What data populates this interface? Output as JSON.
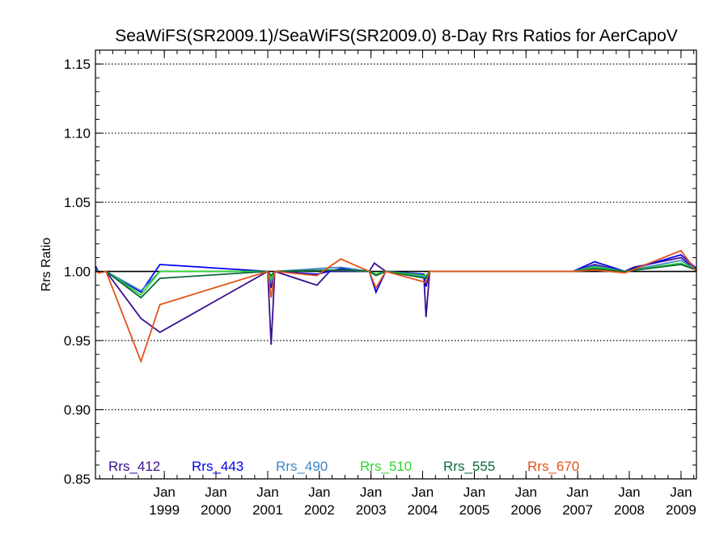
{
  "chart_data": {
    "type": "line",
    "title": "SeaWiFS(SR2009.1)/SeaWiFS(SR2009.0) 8-Day Rrs Ratios for AerCapoV",
    "xlabel": "",
    "ylabel": "Rrs Ratio",
    "xlim": [
      "1997-09-01",
      "2009-04-20"
    ],
    "ylim": [
      0.85,
      1.16
    ],
    "yticks": [
      "0.85",
      "0.90",
      "0.95",
      "1.00",
      "1.05",
      "1.10",
      "1.15"
    ],
    "xticks": [
      {
        "date": "1999-01-01",
        "line1": "Jan",
        "line2": "1999"
      },
      {
        "date": "2000-01-01",
        "line1": "Jan",
        "line2": "2000"
      },
      {
        "date": "2001-01-01",
        "line1": "Jan",
        "line2": "2001"
      },
      {
        "date": "2002-01-01",
        "line1": "Jan",
        "line2": "2002"
      },
      {
        "date": "2003-01-01",
        "line1": "Jan",
        "line2": "2003"
      },
      {
        "date": "2004-01-01",
        "line1": "Jan",
        "line2": "2004"
      },
      {
        "date": "2005-01-01",
        "line1": "Jan",
        "line2": "2005"
      },
      {
        "date": "2006-01-01",
        "line1": "Jan",
        "line2": "2006"
      },
      {
        "date": "2007-01-01",
        "line1": "Jan",
        "line2": "2007"
      },
      {
        "date": "2008-01-01",
        "line1": "Jan",
        "line2": "2008"
      },
      {
        "date": "2009-01-01",
        "line1": "Jan",
        "line2": "2009"
      }
    ],
    "grid": "dotted horizontal",
    "reference_line": 1.0,
    "legend_position": "bottom",
    "series": [
      {
        "name": "Rrs_412",
        "color": "#3a0f8f",
        "points": [
          [
            "1997-09-01",
            1.004
          ],
          [
            "1997-09-25",
            0.999
          ],
          [
            "1997-11-15",
            1.0
          ],
          [
            "1998-07-20",
            0.966
          ],
          [
            "1998-12-01",
            0.956
          ],
          [
            "2001-01-01",
            1.0
          ],
          [
            "2001-01-25",
            0.947
          ],
          [
            "2001-02-20",
            1.0
          ],
          [
            "2001-12-15",
            0.99
          ],
          [
            "2002-03-15",
            1.0
          ],
          [
            "2002-12-20",
            1.0
          ],
          [
            "2003-01-25",
            1.006
          ],
          [
            "2003-04-15",
            1.0
          ],
          [
            "2004-01-10",
            0.997
          ],
          [
            "2004-01-25",
            0.967
          ],
          [
            "2004-02-20",
            1.0
          ],
          [
            "2006-12-01",
            1.0
          ],
          [
            "2007-05-01",
            1.005
          ],
          [
            "2007-12-01",
            1.0
          ],
          [
            "2008-02-01",
            1.003
          ],
          [
            "2009-01-01",
            1.01
          ],
          [
            "2009-04-20",
            1.001
          ]
        ]
      },
      {
        "name": "Rrs_443",
        "color": "#0000ee",
        "points": [
          [
            "1997-09-01",
            1.003
          ],
          [
            "1997-09-25",
            0.999
          ],
          [
            "1997-11-15",
            1.0
          ],
          [
            "1998-07-20",
            0.985
          ],
          [
            "1998-12-01",
            1.005
          ],
          [
            "2001-01-01",
            1.0
          ],
          [
            "2001-01-25",
            0.988
          ],
          [
            "2001-02-20",
            1.0
          ],
          [
            "2001-12-15",
            0.998
          ],
          [
            "2002-06-01",
            1.002
          ],
          [
            "2002-12-20",
            1.0
          ],
          [
            "2003-02-05",
            0.985
          ],
          [
            "2003-04-15",
            1.0
          ],
          [
            "2004-01-10",
            0.998
          ],
          [
            "2004-01-25",
            0.989
          ],
          [
            "2004-02-20",
            1.0
          ],
          [
            "2006-12-01",
            1.0
          ],
          [
            "2007-05-01",
            1.007
          ],
          [
            "2007-12-01",
            1.0
          ],
          [
            "2008-02-01",
            1.002
          ],
          [
            "2009-01-01",
            1.012
          ],
          [
            "2009-04-20",
            1.002
          ]
        ]
      },
      {
        "name": "Rrs_490",
        "color": "#3b86c6",
        "points": [
          [
            "1997-09-01",
            1.002
          ],
          [
            "1997-09-25",
            0.999
          ],
          [
            "1997-11-15",
            1.0
          ],
          [
            "1998-07-20",
            0.986
          ],
          [
            "1998-12-01",
            1.0
          ],
          [
            "2001-01-01",
            1.0
          ],
          [
            "2001-01-25",
            0.992
          ],
          [
            "2001-02-20",
            1.0
          ],
          [
            "2002-06-01",
            1.003
          ],
          [
            "2002-12-20",
            1.0
          ],
          [
            "2003-02-05",
            0.998
          ],
          [
            "2003-04-15",
            1.0
          ],
          [
            "2004-01-25",
            0.996
          ],
          [
            "2004-02-20",
            1.0
          ],
          [
            "2006-12-01",
            1.0
          ],
          [
            "2007-05-01",
            1.004
          ],
          [
            "2007-12-01",
            1.0
          ],
          [
            "2009-01-01",
            1.008
          ],
          [
            "2009-04-20",
            1.001
          ]
        ]
      },
      {
        "name": "Rrs_510",
        "color": "#2ed62e",
        "points": [
          [
            "1997-09-01",
            1.001
          ],
          [
            "1997-09-25",
            0.999
          ],
          [
            "1997-11-15",
            1.0
          ],
          [
            "1998-07-20",
            0.983
          ],
          [
            "1998-12-01",
            1.0
          ],
          [
            "2001-01-01",
            1.0
          ],
          [
            "2001-01-25",
            0.995
          ],
          [
            "2001-02-20",
            1.0
          ],
          [
            "2002-06-01",
            1.001
          ],
          [
            "2002-12-20",
            1.0
          ],
          [
            "2003-02-05",
            0.998
          ],
          [
            "2003-04-15",
            1.0
          ],
          [
            "2004-01-25",
            0.997
          ],
          [
            "2004-02-20",
            1.0
          ],
          [
            "2006-12-01",
            1.0
          ],
          [
            "2007-05-01",
            1.003
          ],
          [
            "2007-12-01",
            1.0
          ],
          [
            "2009-01-01",
            1.006
          ],
          [
            "2009-04-20",
            1.001
          ]
        ]
      },
      {
        "name": "Rrs_555",
        "color": "#0a6b36",
        "points": [
          [
            "1997-09-01",
            1.001
          ],
          [
            "1997-09-25",
            0.999
          ],
          [
            "1997-11-15",
            1.0
          ],
          [
            "1998-07-20",
            0.981
          ],
          [
            "1998-12-01",
            0.995
          ],
          [
            "2001-01-01",
            1.0
          ],
          [
            "2001-01-25",
            0.997
          ],
          [
            "2001-02-20",
            1.0
          ],
          [
            "2002-06-01",
            1.001
          ],
          [
            "2002-12-20",
            1.0
          ],
          [
            "2003-02-05",
            0.997
          ],
          [
            "2003-04-15",
            1.0
          ],
          [
            "2004-01-25",
            0.995
          ],
          [
            "2004-02-20",
            1.0
          ],
          [
            "2006-12-01",
            1.0
          ],
          [
            "2007-05-01",
            1.002
          ],
          [
            "2007-12-01",
            1.0
          ],
          [
            "2009-01-01",
            1.005
          ],
          [
            "2009-04-20",
            1.001
          ]
        ]
      },
      {
        "name": "Rrs_670",
        "color": "#e0531b",
        "points": [
          [
            "1997-09-01",
            1.0
          ],
          [
            "1997-09-25",
            0.999
          ],
          [
            "1997-11-15",
            1.0
          ],
          [
            "1998-07-20",
            0.935
          ],
          [
            "1998-12-01",
            0.976
          ],
          [
            "2001-01-01",
            1.0
          ],
          [
            "2001-01-25",
            0.981
          ],
          [
            "2001-02-20",
            1.0
          ],
          [
            "2001-12-15",
            0.997
          ],
          [
            "2002-06-01",
            1.009
          ],
          [
            "2002-12-20",
            1.0
          ],
          [
            "2003-02-05",
            0.988
          ],
          [
            "2003-04-15",
            1.0
          ],
          [
            "2004-01-25",
            0.992
          ],
          [
            "2004-02-20",
            1.0
          ],
          [
            "2006-12-01",
            1.0
          ],
          [
            "2007-05-01",
            1.001
          ],
          [
            "2007-12-01",
            0.999
          ],
          [
            "2009-01-01",
            1.015
          ],
          [
            "2009-04-20",
            1.0
          ]
        ]
      }
    ]
  }
}
